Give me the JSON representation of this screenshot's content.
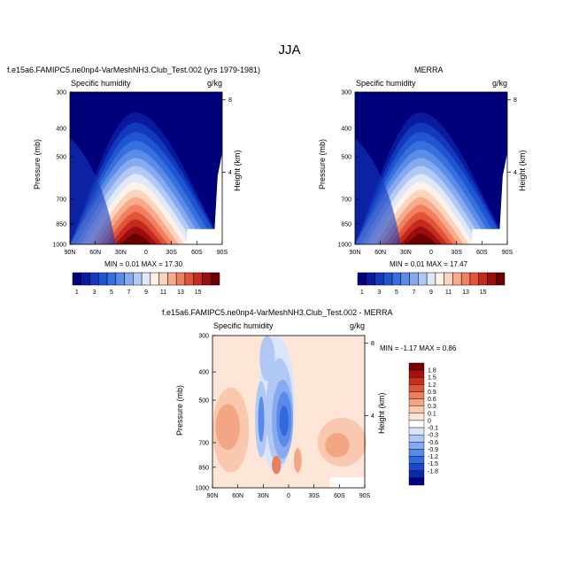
{
  "figure": {
    "season": "JJA"
  },
  "panels": [
    {
      "id": "model",
      "title": "f.e15a6.FAMIPC5.ne0np4-VarMeshNH3.Club_Test.002 (yrs 1979-1981)",
      "left_label": "Specific humidity",
      "right_label": "g/kg",
      "ylabel": "Pressure (mb)",
      "y2label": "Height (km)",
      "minmax": "MIN =  0.01  MAX =  17.30"
    },
    {
      "id": "obs",
      "title": "MERRA",
      "left_label": "Specific humidity",
      "right_label": "g/kg",
      "ylabel": "Pressure (mb)",
      "y2label": "Height (km)",
      "minmax": "MIN =  0.01  MAX =  17.47"
    },
    {
      "id": "diff",
      "title": "f.e15a6.FAMIPC5.ne0np4-VarMeshNH3.Club_Test.002 - MERRA",
      "left_label": "Specific humidity",
      "right_label": "g/kg",
      "ylabel": "Pressure (mb)",
      "y2label": "Height (km)",
      "minmax": "MIN = -1.17  MAX =  0.86"
    }
  ],
  "chart_data": [
    {
      "type": "contour",
      "title": "f.e15a6.FAMIPC5.ne0np4-VarMeshNH3.Club_Test.002 (yrs 1979-1981)",
      "xlabel": "",
      "ylabel": "Pressure (mb)",
      "y2label": "Height (km)",
      "x_ticks": [
        "90N",
        "60N",
        "30N",
        "0",
        "30S",
        "60S",
        "90S"
      ],
      "y_ticks": [
        300,
        400,
        500,
        700,
        850,
        1000
      ],
      "y2_ticks": [
        8,
        4
      ],
      "units": "g/kg",
      "min": 0.01,
      "max": 17.3
    },
    {
      "type": "contour",
      "title": "MERRA",
      "xlabel": "",
      "ylabel": "Pressure (mb)",
      "y2label": "Height (km)",
      "x_ticks": [
        "90N",
        "60N",
        "30N",
        "0",
        "30S",
        "60S",
        "90S"
      ],
      "y_ticks": [
        300,
        400,
        500,
        700,
        850,
        1000
      ],
      "y2_ticks": [
        8,
        4
      ],
      "units": "g/kg",
      "min": 0.01,
      "max": 17.47
    },
    {
      "type": "contour",
      "title": "f.e15a6.FAMIPC5.ne0np4-VarMeshNH3.Club_Test.002 - MERRA",
      "xlabel": "",
      "ylabel": "Pressure (mb)",
      "y2label": "Height (km)",
      "x_ticks": [
        "90N",
        "60N",
        "30N",
        "0",
        "30S",
        "60S",
        "90S"
      ],
      "y_ticks": [
        300,
        400,
        500,
        700,
        850,
        1000
      ],
      "y2_ticks": [
        8,
        4
      ],
      "units": "g/kg",
      "min": -1.17,
      "max": 0.86
    }
  ],
  "colorbar_main": {
    "colors": [
      "#00007a",
      "#0a1a9c",
      "#1238bd",
      "#1f55d1",
      "#3670dd",
      "#5b8de8",
      "#86aaef",
      "#b2c9f5",
      "#dde8fb",
      "#fdf1e8",
      "#fcd3bd",
      "#f8ab8c",
      "#f08060",
      "#e05438",
      "#c42b1c",
      "#9c0d0d",
      "#6b0000"
    ],
    "labels": [
      "1",
      "3",
      "5",
      "7",
      "9",
      "11",
      "13",
      "15"
    ]
  },
  "colorbar_diff": {
    "colors": [
      "#000080",
      "#0b2aa8",
      "#1b4ac9",
      "#3469dd",
      "#5a8ae8",
      "#86a9ef",
      "#b1c8f4",
      "#d8e5fa",
      "#ffffff",
      "#fde6d8",
      "#f9c8ae",
      "#f3a684",
      "#e97f5c",
      "#dc5638",
      "#c62f1c",
      "#a5100e",
      "#7a0000"
    ],
    "labels": [
      "1.8",
      "1.5",
      "1.2",
      "0.9",
      "0.6",
      "0.3",
      "0.1",
      "0",
      "-0.1",
      "-0.3",
      "-0.6",
      "-0.9",
      "-1.2",
      "-1.5",
      "-1.8"
    ]
  }
}
